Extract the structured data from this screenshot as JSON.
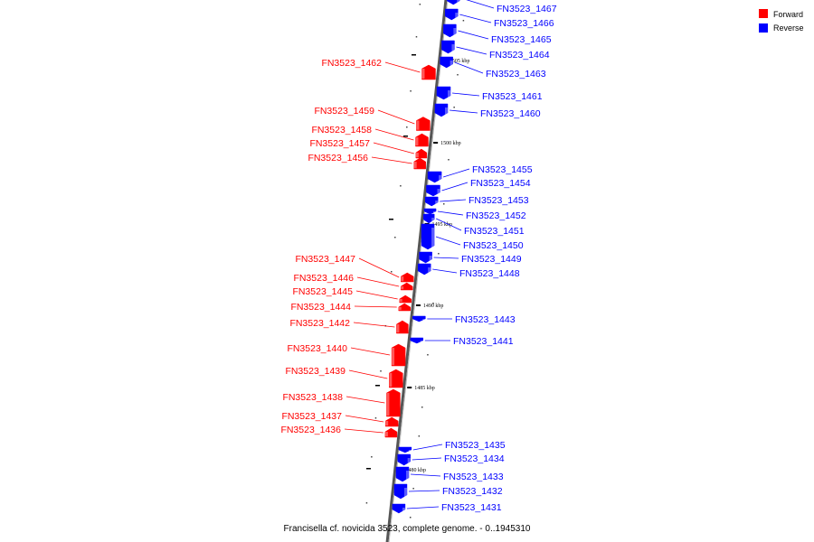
{
  "caption": "Francisella cf. novicida 3523, complete genome. - 0..1945310",
  "legend": [
    {
      "label": "Forward",
      "color": "#ff0000"
    },
    {
      "label": "Reverse",
      "color": "#0000ff"
    }
  ],
  "colors": {
    "forward": "#ff0000",
    "reverse": "#0000ff",
    "backbone": "#777777",
    "tick": "#000000"
  },
  "ticks": [
    "1505 kbp",
    "1500 kbp",
    "1495 kbp",
    "1490 kbp",
    "1485 kbp",
    "1480 kbp"
  ],
  "genes": [
    {
      "label": "FN3523_1467",
      "strand": "reverse"
    },
    {
      "label": "FN3523_1466",
      "strand": "reverse"
    },
    {
      "label": "FN3523_1465",
      "strand": "reverse"
    },
    {
      "label": "FN3523_1464",
      "strand": "reverse"
    },
    {
      "label": "FN3523_1463",
      "strand": "reverse"
    },
    {
      "label": "FN3523_1462",
      "strand": "forward"
    },
    {
      "label": "FN3523_1461",
      "strand": "reverse"
    },
    {
      "label": "FN3523_1460",
      "strand": "reverse"
    },
    {
      "label": "FN3523_1459",
      "strand": "forward"
    },
    {
      "label": "FN3523_1458",
      "strand": "forward"
    },
    {
      "label": "FN3523_1457",
      "strand": "forward"
    },
    {
      "label": "FN3523_1456",
      "strand": "forward"
    },
    {
      "label": "FN3523_1455",
      "strand": "reverse"
    },
    {
      "label": "FN3523_1454",
      "strand": "reverse"
    },
    {
      "label": "FN3523_1453",
      "strand": "reverse"
    },
    {
      "label": "FN3523_1452",
      "strand": "reverse"
    },
    {
      "label": "FN3523_1451",
      "strand": "reverse"
    },
    {
      "label": "FN3523_1450",
      "strand": "reverse"
    },
    {
      "label": "FN3523_1449",
      "strand": "reverse"
    },
    {
      "label": "FN3523_1448",
      "strand": "reverse"
    },
    {
      "label": "FN3523_1447",
      "strand": "forward"
    },
    {
      "label": "FN3523_1446",
      "strand": "forward"
    },
    {
      "label": "FN3523_1445",
      "strand": "forward"
    },
    {
      "label": "FN3523_1444",
      "strand": "forward"
    },
    {
      "label": "FN3523_1443",
      "strand": "reverse"
    },
    {
      "label": "FN3523_1442",
      "strand": "forward"
    },
    {
      "label": "FN3523_1441",
      "strand": "reverse"
    },
    {
      "label": "FN3523_1440",
      "strand": "forward"
    },
    {
      "label": "FN3523_1439",
      "strand": "forward"
    },
    {
      "label": "FN3523_1438",
      "strand": "forward"
    },
    {
      "label": "FN3523_1437",
      "strand": "forward"
    },
    {
      "label": "FN3523_1436",
      "strand": "forward"
    },
    {
      "label": "FN3523_1435",
      "strand": "reverse"
    },
    {
      "label": "FN3523_1434",
      "strand": "reverse"
    },
    {
      "label": "FN3523_1433",
      "strand": "reverse"
    },
    {
      "label": "FN3523_1432",
      "strand": "reverse"
    },
    {
      "label": "FN3523_1431",
      "strand": "reverse"
    }
  ]
}
